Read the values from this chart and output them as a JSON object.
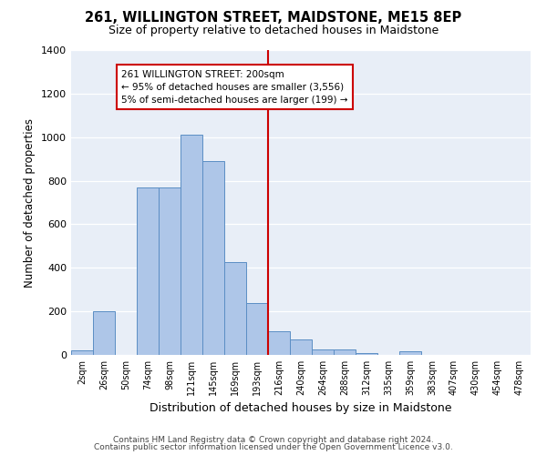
{
  "title": "261, WILLINGTON STREET, MAIDSTONE, ME15 8EP",
  "subtitle": "Size of property relative to detached houses in Maidstone",
  "xlabel": "Distribution of detached houses by size in Maidstone",
  "ylabel": "Number of detached properties",
  "bar_labels": [
    "2sqm",
    "26sqm",
    "50sqm",
    "74sqm",
    "98sqm",
    "121sqm",
    "145sqm",
    "169sqm",
    "193sqm",
    "216sqm",
    "240sqm",
    "264sqm",
    "288sqm",
    "312sqm",
    "335sqm",
    "359sqm",
    "383sqm",
    "407sqm",
    "430sqm",
    "454sqm",
    "478sqm"
  ],
  "bar_heights": [
    20,
    200,
    0,
    770,
    770,
    1010,
    890,
    425,
    240,
    110,
    70,
    25,
    25,
    10,
    0,
    15,
    0,
    0,
    0,
    0,
    0
  ],
  "bar_color": "#aec6e8",
  "bar_edge_color": "#5b8ec4",
  "vline_x": 8.5,
  "vline_color": "#cc0000",
  "annotation_title": "261 WILLINGTON STREET: 200sqm",
  "annotation_line1": "← 95% of detached houses are smaller (3,556)",
  "annotation_line2": "5% of semi-detached houses are larger (199) →",
  "annotation_box_color": "#cc0000",
  "annotation_bg": "#ffffff",
  "ylim": [
    0,
    1400
  ],
  "yticks": [
    0,
    200,
    400,
    600,
    800,
    1000,
    1200,
    1400
  ],
  "bg_color": "#e8eef7",
  "footer1": "Contains HM Land Registry data © Crown copyright and database right 2024.",
  "footer2": "Contains public sector information licensed under the Open Government Licence v3.0."
}
